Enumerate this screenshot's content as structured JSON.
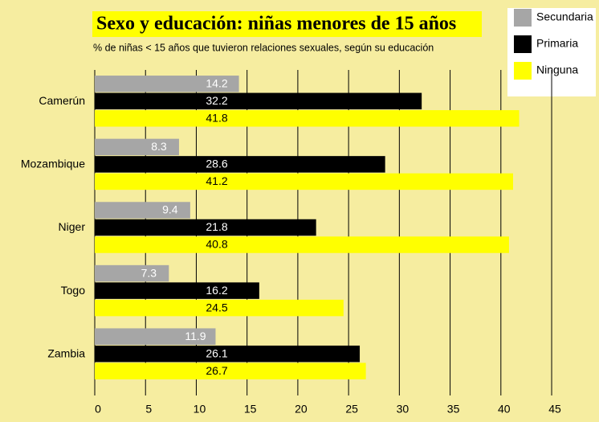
{
  "chart_data": {
    "type": "hbar",
    "title": "Sexo y educación: niñas menores de 15 años",
    "subtitle": "% de niñas < 15 años que tuvieron relaciones sexuales, según su educación",
    "categories": [
      "Camerún",
      "Mozambique",
      "Niger",
      "Togo",
      "Zambia"
    ],
    "series": [
      {
        "name": "Secundaria",
        "color": "#a6a6a6",
        "values": [
          14.2,
          8.3,
          9.4,
          7.3,
          11.9
        ]
      },
      {
        "name": "Primaria",
        "color": "#000000",
        "values": [
          32.2,
          28.6,
          21.8,
          16.2,
          26.1
        ]
      },
      {
        "name": "Ninguna",
        "color": "#ffff00",
        "values": [
          41.8,
          41.2,
          40.8,
          24.5,
          26.7
        ]
      }
    ],
    "xlim": [
      0,
      46.5
    ],
    "xticks": [
      0,
      5,
      10,
      15,
      20,
      25,
      30,
      35,
      40,
      45
    ],
    "grid": true,
    "legend": "top-right"
  }
}
